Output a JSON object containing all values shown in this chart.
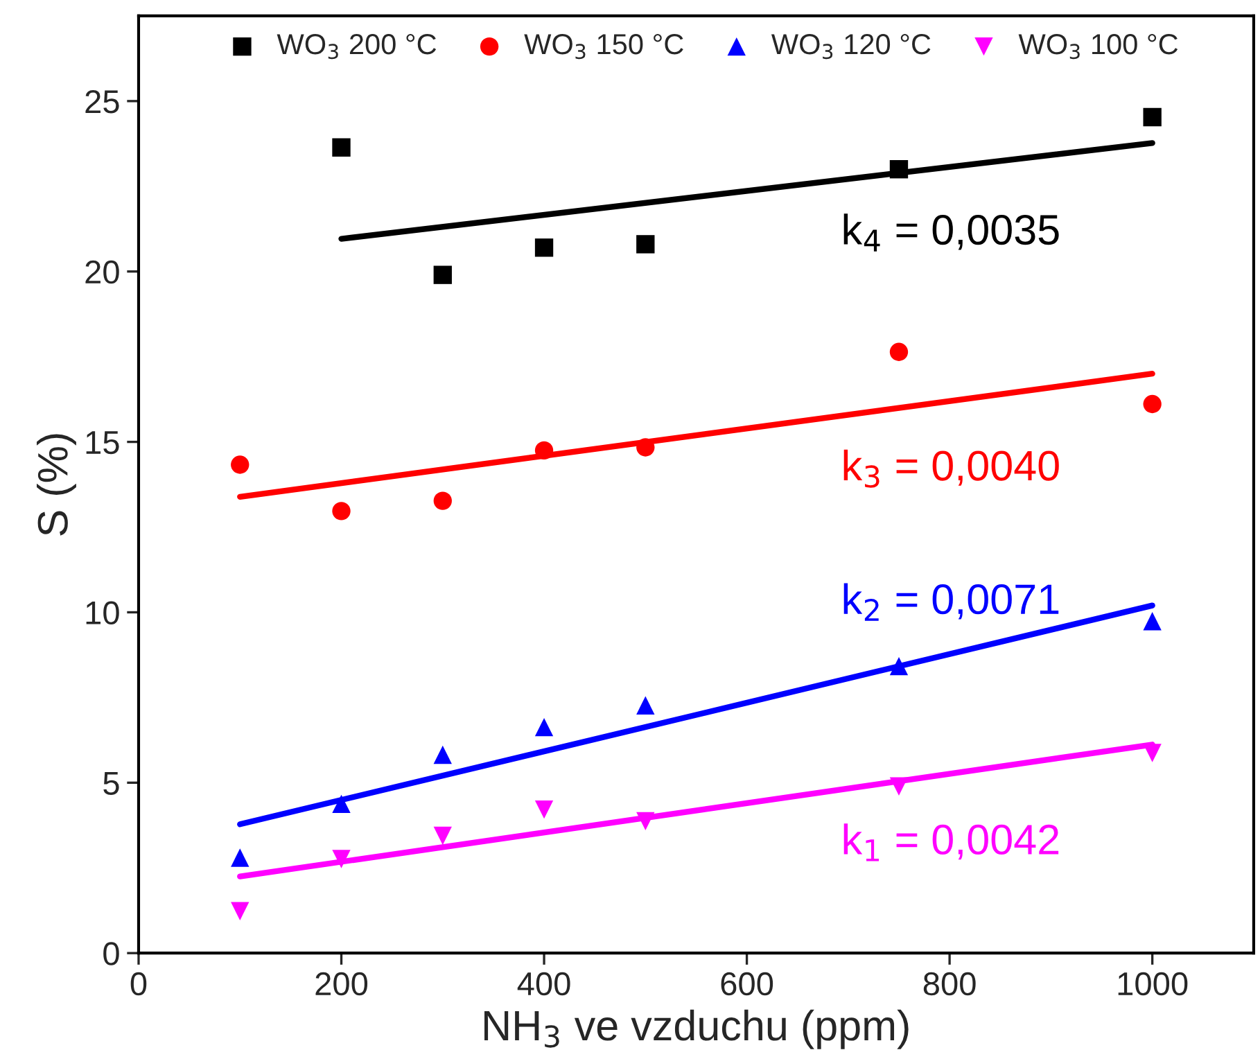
{
  "chart_data": {
    "type": "scatter",
    "xlabel": "NH$_{3}$ ve vzduchu (ppm)",
    "ylabel": "S (%)",
    "xlim": [
      0,
      1100
    ],
    "ylim": [
      0,
      27.5
    ],
    "xticks": [
      0,
      200,
      400,
      600,
      800,
      1000
    ],
    "yticks": [
      0,
      5,
      10,
      15,
      20,
      25
    ],
    "grid": false,
    "legend": "top",
    "series": [
      {
        "name": "WO$_{3}$ 200 °C",
        "marker": "square",
        "color": "#000000",
        "x": [
          200,
          300,
          400,
          500,
          750,
          1000
        ],
        "values": [
          23.64,
          19.9,
          20.7,
          20.8,
          23.0,
          24.53
        ]
      },
      {
        "name": "WO$_{3}$ 150 °C",
        "marker": "circle",
        "color": "#ff0000",
        "x": [
          100,
          200,
          300,
          400,
          500,
          750,
          1000
        ],
        "values": [
          14.33,
          12.97,
          13.27,
          14.75,
          14.84,
          17.64,
          16.11
        ]
      },
      {
        "name": "WO$_{3}$ 120 °C",
        "marker": "triangle",
        "color": "#0000ff",
        "x": [
          100,
          200,
          300,
          400,
          500,
          750,
          1000
        ],
        "values": [
          2.8,
          4.38,
          5.82,
          6.63,
          7.27,
          8.42,
          9.74
        ]
      },
      {
        "name": "WO$_{3}$ 100 °C",
        "marker": "triangle_down",
        "color": "#ff00ff",
        "x": [
          100,
          200,
          300,
          400,
          500,
          750,
          1000
        ],
        "values": [
          1.23,
          2.76,
          3.44,
          4.21,
          3.87,
          4.89,
          5.87
        ]
      },
      {
        "type": "line",
        "color": "#000000",
        "x": [
          200,
          1000
        ],
        "values": [
          20.96,
          23.77
        ]
      },
      {
        "type": "line",
        "color": "#ff0000",
        "x": [
          100,
          1000
        ],
        "values": [
          13.39,
          17.0
        ]
      },
      {
        "type": "line",
        "color": "#0000ff",
        "x": [
          100,
          1000
        ],
        "values": [
          3.78,
          10.2
        ]
      },
      {
        "type": "line",
        "color": "#ff00ff",
        "x": [
          100,
          1000
        ],
        "values": [
          2.25,
          6.12
        ]
      }
    ],
    "annotations": [
      "k$_{4}$ = 0,0035",
      "k$_{3}$ = 0,0040",
      "k$_{2}$ = 0,0071",
      "k$_{1}$ = 0,0042"
    ]
  }
}
